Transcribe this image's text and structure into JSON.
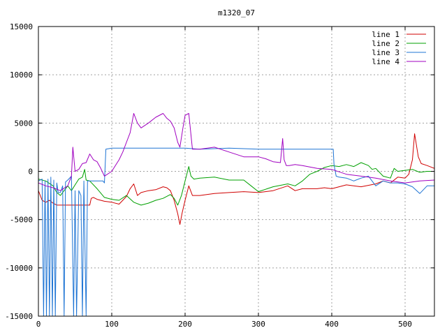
{
  "chart_data": {
    "type": "line",
    "title": "m1320_07",
    "xlabel": "",
    "ylabel": "",
    "xlim": [
      0,
      540
    ],
    "ylim": [
      -15000,
      15000
    ],
    "x_ticks": [
      0,
      100,
      200,
      300,
      400,
      500
    ],
    "y_ticks": [
      -15000,
      -10000,
      -5000,
      0,
      5000,
      10000,
      15000
    ],
    "grid": true,
    "legend_position": "top-right",
    "series": [
      {
        "name": "line 1",
        "color": "#d00000",
        "x": [
          0,
          5,
          10,
          15,
          20,
          25,
          30,
          45,
          60,
          70,
          72,
          75,
          80,
          90,
          100,
          110,
          115,
          120,
          125,
          130,
          135,
          140,
          150,
          160,
          170,
          175,
          180,
          185,
          190,
          193,
          196,
          200,
          205,
          210,
          220,
          240,
          260,
          280,
          300,
          320,
          340,
          350,
          360,
          380,
          390,
          400,
          420,
          440,
          460,
          470,
          480,
          490,
          500,
          505,
          510,
          513,
          518,
          522,
          530,
          540
        ],
        "y": [
          -2000,
          -3000,
          -3200,
          -3000,
          -3300,
          -3500,
          -3500,
          -3500,
          -3500,
          -3500,
          -2800,
          -2700,
          -2900,
          -3100,
          -3200,
          -3400,
          -3000,
          -2600,
          -1800,
          -1300,
          -2500,
          -2200,
          -2000,
          -1900,
          -1600,
          -1700,
          -2000,
          -3000,
          -4400,
          -5500,
          -4300,
          -3000,
          -1500,
          -2500,
          -2500,
          -2300,
          -2200,
          -2100,
          -2200,
          -2000,
          -1500,
          -2000,
          -1800,
          -1800,
          -1700,
          -1800,
          -1400,
          -1600,
          -1300,
          -1000,
          -1200,
          -600,
          -700,
          -300,
          1200,
          3900,
          1500,
          800,
          600,
          300
        ]
      },
      {
        "name": "line 2",
        "color": "#00a000",
        "x": [
          0,
          10,
          20,
          25,
          30,
          40,
          45,
          50,
          55,
          60,
          63,
          65,
          70,
          80,
          90,
          100,
          110,
          120,
          130,
          140,
          150,
          160,
          170,
          180,
          185,
          190,
          195,
          200,
          205,
          208,
          212,
          220,
          240,
          260,
          280,
          290,
          300,
          320,
          340,
          350,
          360,
          370,
          380,
          390,
          400,
          410,
          420,
          430,
          440,
          450,
          455,
          460,
          470,
          480,
          485,
          490,
          500,
          510,
          520,
          530,
          540
        ],
        "y": [
          -800,
          -1000,
          -1500,
          -2200,
          -2500,
          -1500,
          -2000,
          -1400,
          -800,
          -600,
          200,
          -900,
          -1000,
          -1800,
          -2700,
          -2900,
          -3000,
          -2500,
          -3200,
          -3500,
          -3300,
          -3000,
          -2800,
          -2400,
          -2800,
          -3500,
          -2500,
          -1000,
          500,
          -500,
          -800,
          -700,
          -600,
          -900,
          -900,
          -1500,
          -2100,
          -1600,
          -1300,
          -1500,
          -1000,
          -300,
          0,
          400,
          600,
          500,
          700,
          500,
          900,
          600,
          200,
          300,
          -500,
          -700,
          300,
          0,
          100,
          200,
          -100,
          0,
          0
        ]
      },
      {
        "name": "line 3",
        "color": "#1e74d4",
        "x": [
          0,
          5,
          7,
          9,
          11,
          13,
          15,
          17,
          19,
          21,
          23,
          25,
          27,
          30,
          33,
          35,
          37,
          40,
          45,
          48,
          50,
          52,
          55,
          58,
          60,
          62,
          65,
          67,
          70,
          80,
          88,
          90,
          92,
          100,
          150,
          200,
          220,
          260,
          300,
          350,
          380,
          400,
          402,
          403,
          406,
          410,
          420,
          430,
          440,
          450,
          460,
          470,
          480,
          490,
          500,
          510,
          520,
          530,
          540
        ],
        "y": [
          -1000,
          -800,
          -15000,
          -1000,
          -15000,
          -800,
          -15000,
          -600,
          -15000,
          -900,
          -15000,
          -1200,
          -2200,
          -2200,
          -1500,
          -15000,
          -1100,
          -900,
          -500,
          -15000,
          -2000,
          -15000,
          -2000,
          -2500,
          -15000,
          -1000,
          -15000,
          -1000,
          -1000,
          -1000,
          -1000,
          -1200,
          2300,
          2400,
          2400,
          2400,
          2300,
          2400,
          2300,
          2300,
          2300,
          2300,
          2300,
          700,
          -500,
          -600,
          -700,
          -1000,
          -700,
          -500,
          -1500,
          -1000,
          -1200,
          -1200,
          -1300,
          -1600,
          -2300,
          -1500,
          -1500
        ]
      },
      {
        "name": "line 4",
        "color": "#a000c0",
        "x": [
          0,
          10,
          20,
          30,
          40,
          45,
          47,
          50,
          55,
          60,
          65,
          70,
          75,
          80,
          85,
          90,
          100,
          110,
          115,
          120,
          125,
          130,
          135,
          140,
          150,
          160,
          170,
          175,
          180,
          185,
          190,
          193,
          197,
          200,
          205,
          210,
          220,
          240,
          260,
          280,
          300,
          310,
          320,
          330,
          333,
          335,
          338,
          342,
          350,
          360,
          380,
          400,
          420,
          440,
          460,
          480,
          500,
          520,
          540
        ],
        "y": [
          -1200,
          -1500,
          -1700,
          -2000,
          -1500,
          -500,
          2500,
          0,
          200,
          800,
          900,
          1800,
          1200,
          1000,
          300,
          -500,
          0,
          1200,
          2000,
          3000,
          4000,
          6000,
          5000,
          4500,
          5000,
          5600,
          6000,
          5500,
          5200,
          4500,
          3000,
          2500,
          4500,
          5800,
          6000,
          2300,
          2300,
          2500,
          2000,
          1500,
          1500,
          1300,
          1000,
          900,
          3400,
          1200,
          600,
          600,
          700,
          600,
          300,
          200,
          -300,
          -500,
          -700,
          -1000,
          -1200,
          -1000,
          -900
        ]
      }
    ]
  }
}
